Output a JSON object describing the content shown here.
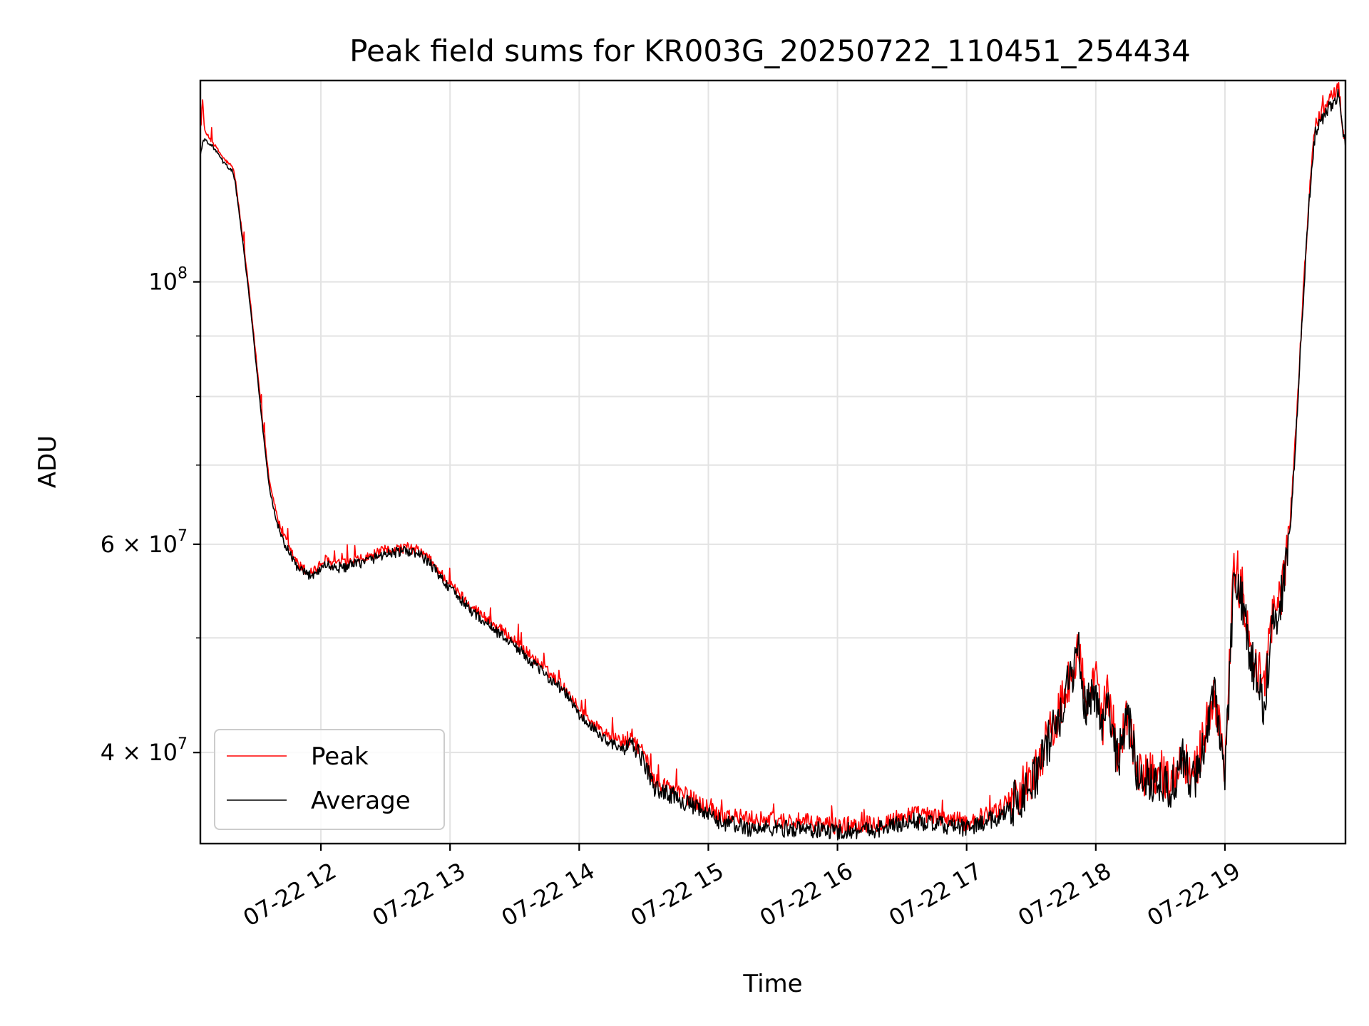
{
  "chart_data": {
    "type": "line",
    "title": "Peak field sums for KR003G_20250722_110451_254434",
    "xlabel": "Time",
    "ylabel": "ADU",
    "x_scale": "time",
    "y_scale": "log",
    "grid": true,
    "legend_position": "lower-left",
    "xlim": [
      "2025-07-22 11:04",
      "2025-07-22 19:56"
    ],
    "ylim": [
      33500000,
      148000000
    ],
    "x_ticks": [
      {
        "time": "2025-07-22 12:00",
        "label": "07-22 12"
      },
      {
        "time": "2025-07-22 13:00",
        "label": "07-22 13"
      },
      {
        "time": "2025-07-22 14:00",
        "label": "07-22 14"
      },
      {
        "time": "2025-07-22 15:00",
        "label": "07-22 15"
      },
      {
        "time": "2025-07-22 16:00",
        "label": "07-22 16"
      },
      {
        "time": "2025-07-22 17:00",
        "label": "07-22 17"
      },
      {
        "time": "2025-07-22 18:00",
        "label": "07-22 18"
      },
      {
        "time": "2025-07-22 19:00",
        "label": "07-22 19"
      }
    ],
    "y_ticks": [
      {
        "value": 100000000,
        "base": "10",
        "exp": "8",
        "mantissa": ""
      },
      {
        "value": 60000000,
        "base": "10",
        "exp": "7",
        "mantissa": "6 × "
      },
      {
        "value": 40000000,
        "base": "10",
        "exp": "7",
        "mantissa": "4 × "
      }
    ],
    "y_minor_ticks": [
      50000000,
      70000000,
      80000000,
      90000000
    ],
    "series": [
      {
        "name": "Peak",
        "color": "#ff0000",
        "points": [
          [
            "2025-07-22 11:04",
            132000000
          ],
          [
            "2025-07-22 11:05",
            143000000
          ],
          [
            "2025-07-22 11:06",
            134000000
          ],
          [
            "2025-07-22 11:10",
            131000000
          ],
          [
            "2025-07-22 11:15",
            127000000
          ],
          [
            "2025-07-22 11:19",
            125000000
          ],
          [
            "2025-07-22 11:20",
            123000000
          ],
          [
            "2025-07-22 11:24",
            108000000
          ],
          [
            "2025-07-22 11:27",
            97000000
          ],
          [
            "2025-07-22 11:30",
            86000000
          ],
          [
            "2025-07-22 11:33",
            76000000
          ],
          [
            "2025-07-22 11:36",
            68000000
          ],
          [
            "2025-07-22 11:40",
            63000000
          ],
          [
            "2025-07-22 11:45",
            59500000
          ],
          [
            "2025-07-22 11:50",
            57500000
          ],
          [
            "2025-07-22 11:54",
            56800000
          ],
          [
            "2025-07-22 11:58",
            57200000
          ],
          [
            "2025-07-22 12:02",
            58200000
          ],
          [
            "2025-07-22 12:05",
            57800000
          ],
          [
            "2025-07-22 12:10",
            57700000
          ],
          [
            "2025-07-22 12:20",
            58300000
          ],
          [
            "2025-07-22 12:30",
            59300000
          ],
          [
            "2025-07-22 12:40",
            59600000
          ],
          [
            "2025-07-22 12:45",
            59300000
          ],
          [
            "2025-07-22 12:50",
            58400000
          ],
          [
            "2025-07-22 13:00",
            55500000
          ],
          [
            "2025-07-22 13:10",
            53200000
          ],
          [
            "2025-07-22 13:20",
            51400000
          ],
          [
            "2025-07-22 13:30",
            49800000
          ],
          [
            "2025-07-22 13:40",
            47800000
          ],
          [
            "2025-07-22 13:50",
            46000000
          ],
          [
            "2025-07-22 13:55",
            45000000
          ],
          [
            "2025-07-22 14:00",
            43500000
          ],
          [
            "2025-07-22 14:10",
            41800000
          ],
          [
            "2025-07-22 14:20",
            40800000
          ],
          [
            "2025-07-22 14:25",
            41200000
          ],
          [
            "2025-07-22 14:30",
            39800000
          ],
          [
            "2025-07-22 14:35",
            37800000
          ],
          [
            "2025-07-22 14:45",
            37200000
          ],
          [
            "2025-07-22 14:55",
            36300000
          ],
          [
            "2025-07-22 15:05",
            35500000
          ],
          [
            "2025-07-22 15:20",
            35100000
          ],
          [
            "2025-07-22 15:40",
            35000000
          ],
          [
            "2025-07-22 16:00",
            34700000
          ],
          [
            "2025-07-22 16:20",
            34900000
          ],
          [
            "2025-07-22 16:35",
            35500000
          ],
          [
            "2025-07-22 16:50",
            35200000
          ],
          [
            "2025-07-22 17:00",
            34900000
          ],
          [
            "2025-07-22 17:15",
            35800000
          ],
          [
            "2025-07-22 17:30",
            38000000
          ],
          [
            "2025-07-22 17:40",
            42000000
          ],
          [
            "2025-07-22 17:45",
            44500000
          ],
          [
            "2025-07-22 17:50",
            48000000
          ],
          [
            "2025-07-22 17:52",
            49600000
          ],
          [
            "2025-07-22 17:55",
            44000000
          ],
          [
            "2025-07-22 18:00",
            46000000
          ],
          [
            "2025-07-22 18:03",
            42000000
          ],
          [
            "2025-07-22 18:05",
            45500000
          ],
          [
            "2025-07-22 18:10",
            40000000
          ],
          [
            "2025-07-22 18:15",
            43000000
          ],
          [
            "2025-07-22 18:20",
            38500000
          ],
          [
            "2025-07-22 18:30",
            38500000
          ],
          [
            "2025-07-22 18:35",
            37600000
          ],
          [
            "2025-07-22 18:40",
            40000000
          ],
          [
            "2025-07-22 18:45",
            38000000
          ],
          [
            "2025-07-22 18:50",
            41000000
          ],
          [
            "2025-07-22 18:55",
            45500000
          ],
          [
            "2025-07-22 19:00",
            38000000
          ],
          [
            "2025-07-22 19:04",
            56500000
          ],
          [
            "2025-07-22 19:08",
            55000000
          ],
          [
            "2025-07-22 19:12",
            49000000
          ],
          [
            "2025-07-22 19:18",
            45000000
          ],
          [
            "2025-07-22 19:22",
            52000000
          ],
          [
            "2025-07-22 19:26",
            54000000
          ],
          [
            "2025-07-22 19:30",
            62000000
          ],
          [
            "2025-07-22 19:33",
            75000000
          ],
          [
            "2025-07-22 19:36",
            95000000
          ],
          [
            "2025-07-22 19:39",
            118000000
          ],
          [
            "2025-07-22 19:42",
            136000000
          ],
          [
            "2025-07-22 19:46",
            140000000
          ],
          [
            "2025-07-22 19:50",
            144000000
          ],
          [
            "2025-07-22 19:53",
            146000000
          ],
          [
            "2025-07-22 19:55",
            133000000
          ],
          [
            "2025-07-22 19:56",
            131000000
          ]
        ]
      },
      {
        "name": "Average",
        "color": "#000000",
        "points": [
          [
            "2025-07-22 11:04",
            128000000
          ],
          [
            "2025-07-22 11:05",
            131000000
          ],
          [
            "2025-07-22 11:06",
            132000000
          ],
          [
            "2025-07-22 11:10",
            130000000
          ],
          [
            "2025-07-22 11:15",
            126000000
          ],
          [
            "2025-07-22 11:19",
            124000000
          ],
          [
            "2025-07-22 11:20",
            122000000
          ],
          [
            "2025-07-22 11:24",
            107000000
          ],
          [
            "2025-07-22 11:27",
            96000000
          ],
          [
            "2025-07-22 11:30",
            85000000
          ],
          [
            "2025-07-22 11:33",
            75000000
          ],
          [
            "2025-07-22 11:36",
            67000000
          ],
          [
            "2025-07-22 11:40",
            62000000
          ],
          [
            "2025-07-22 11:45",
            59000000
          ],
          [
            "2025-07-22 11:50",
            57000000
          ],
          [
            "2025-07-22 11:54",
            56500000
          ],
          [
            "2025-07-22 11:58",
            56800000
          ],
          [
            "2025-07-22 12:02",
            57700000
          ],
          [
            "2025-07-22 12:05",
            57400000
          ],
          [
            "2025-07-22 12:10",
            57300000
          ],
          [
            "2025-07-22 12:20",
            58000000
          ],
          [
            "2025-07-22 12:30",
            58900000
          ],
          [
            "2025-07-22 12:40",
            59200000
          ],
          [
            "2025-07-22 12:45",
            58900000
          ],
          [
            "2025-07-22 12:50",
            58000000
          ],
          [
            "2025-07-22 13:00",
            55000000
          ],
          [
            "2025-07-22 13:10",
            52700000
          ],
          [
            "2025-07-22 13:20",
            50900000
          ],
          [
            "2025-07-22 13:30",
            49300000
          ],
          [
            "2025-07-22 13:40",
            47300000
          ],
          [
            "2025-07-22 13:50",
            45600000
          ],
          [
            "2025-07-22 13:55",
            44600000
          ],
          [
            "2025-07-22 14:00",
            43000000
          ],
          [
            "2025-07-22 14:10",
            41300000
          ],
          [
            "2025-07-22 14:20",
            40200000
          ],
          [
            "2025-07-22 14:25",
            40600000
          ],
          [
            "2025-07-22 14:30",
            39300000
          ],
          [
            "2025-07-22 14:35",
            37300000
          ],
          [
            "2025-07-22 14:45",
            36700000
          ],
          [
            "2025-07-22 14:55",
            35800000
          ],
          [
            "2025-07-22 15:05",
            35000000
          ],
          [
            "2025-07-22 15:20",
            34500000
          ],
          [
            "2025-07-22 15:40",
            34500000
          ],
          [
            "2025-07-22 16:00",
            34300000
          ],
          [
            "2025-07-22 16:20",
            34500000
          ],
          [
            "2025-07-22 16:35",
            35000000
          ],
          [
            "2025-07-22 16:50",
            34700000
          ],
          [
            "2025-07-22 17:00",
            34500000
          ],
          [
            "2025-07-22 17:15",
            35300000
          ],
          [
            "2025-07-22 17:30",
            37500000
          ],
          [
            "2025-07-22 17:40",
            41500000
          ],
          [
            "2025-07-22 17:45",
            44000000
          ],
          [
            "2025-07-22 17:50",
            47500000
          ],
          [
            "2025-07-22 17:52",
            49000000
          ],
          [
            "2025-07-22 17:55",
            43500000
          ],
          [
            "2025-07-22 18:00",
            45500000
          ],
          [
            "2025-07-22 18:03",
            41500000
          ],
          [
            "2025-07-22 18:05",
            45000000
          ],
          [
            "2025-07-22 18:10",
            39500000
          ],
          [
            "2025-07-22 18:15",
            42500000
          ],
          [
            "2025-07-22 18:20",
            38000000
          ],
          [
            "2025-07-22 18:30",
            38000000
          ],
          [
            "2025-07-22 18:35",
            37100000
          ],
          [
            "2025-07-22 18:40",
            39500000
          ],
          [
            "2025-07-22 18:45",
            37500000
          ],
          [
            "2025-07-22 18:50",
            40500000
          ],
          [
            "2025-07-22 18:55",
            45000000
          ],
          [
            "2025-07-22 19:00",
            37500000
          ],
          [
            "2025-07-22 19:04",
            55500000
          ],
          [
            "2025-07-22 19:08",
            54000000
          ],
          [
            "2025-07-22 19:12",
            48000000
          ],
          [
            "2025-07-22 19:18",
            44000000
          ],
          [
            "2025-07-22 19:22",
            51000000
          ],
          [
            "2025-07-22 19:26",
            53500000
          ],
          [
            "2025-07-22 19:30",
            61000000
          ],
          [
            "2025-07-22 19:33",
            74000000
          ],
          [
            "2025-07-22 19:36",
            94000000
          ],
          [
            "2025-07-22 19:39",
            116000000
          ],
          [
            "2025-07-22 19:42",
            134000000
          ],
          [
            "2025-07-22 19:46",
            138000000
          ],
          [
            "2025-07-22 19:50",
            142000000
          ],
          [
            "2025-07-22 19:53",
            144000000
          ],
          [
            "2025-07-22 19:55",
            132000000
          ],
          [
            "2025-07-22 19:56",
            130000000
          ]
        ]
      }
    ]
  }
}
